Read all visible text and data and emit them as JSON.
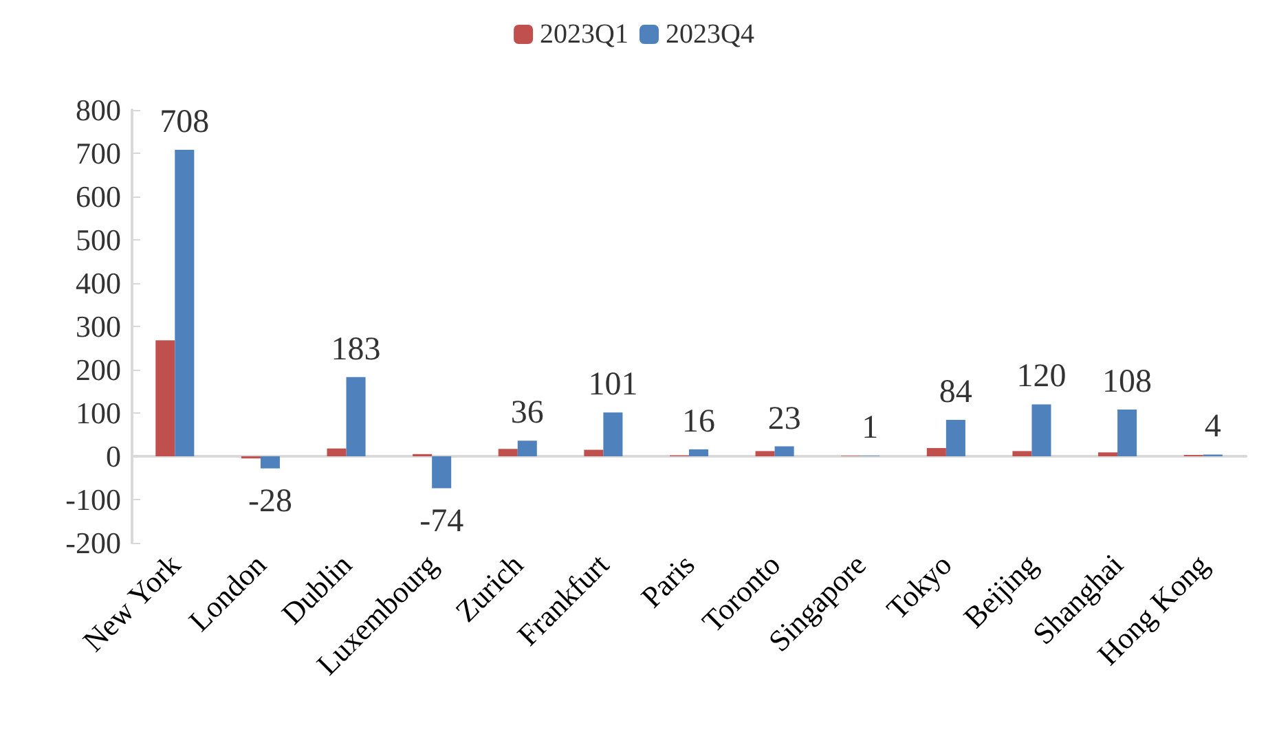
{
  "chart_data": {
    "type": "bar",
    "categories": [
      "New York",
      "London",
      "Dublin",
      "Luxembourg",
      "Zurich",
      "Frankfurt",
      "Paris",
      "Toronto",
      "Singapore",
      "Tokyo",
      "Beijing",
      "Shanghai",
      "Hong Kong"
    ],
    "series": [
      {
        "name": "2023Q1",
        "color": "#c0504d",
        "values": [
          268,
          -5,
          18,
          5,
          17,
          15,
          2,
          12,
          1,
          19,
          12,
          9,
          3
        ]
      },
      {
        "name": "2023Q4",
        "color": "#4f81bd",
        "values": [
          708,
          -28,
          183,
          -74,
          36,
          101,
          16,
          23,
          1,
          84,
          120,
          108,
          4
        ],
        "value_labels": [
          "708",
          "-28",
          "183",
          "-74",
          "36",
          "101",
          "16",
          "23",
          "1",
          "84",
          "120",
          "108",
          "4"
        ]
      }
    ],
    "ylim": [
      -200,
      800
    ],
    "yticks": [
      -200,
      -100,
      0,
      100,
      200,
      300,
      400,
      500,
      600,
      700,
      800
    ],
    "legend": "top"
  }
}
